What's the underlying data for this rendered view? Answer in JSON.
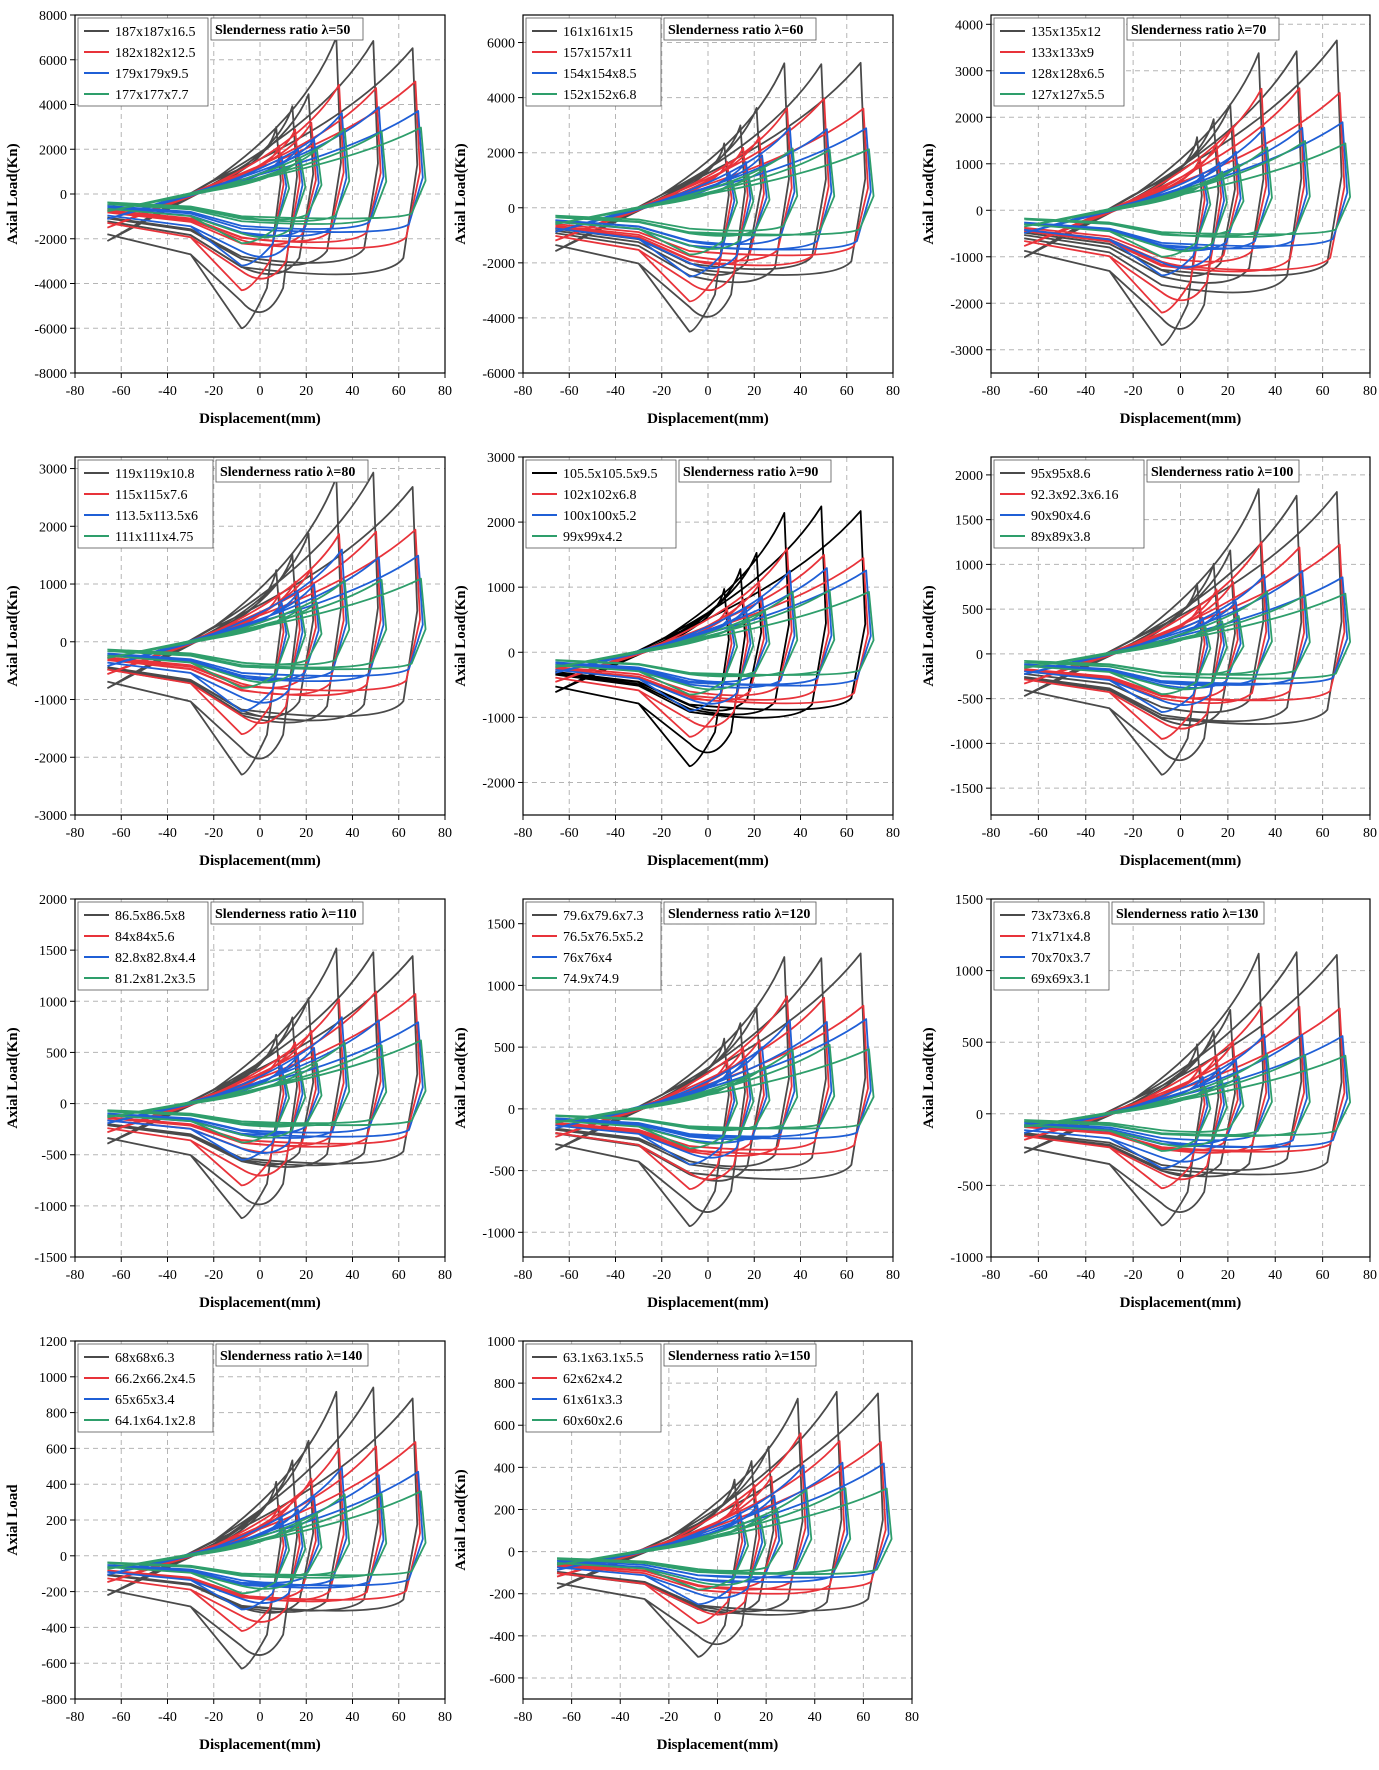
{
  "colors": {
    "black": "#4a4a4a",
    "true_black": "#000000",
    "red": "#e8333a",
    "blue": "#1f5fd6",
    "green": "#2e9e6b",
    "grid": "#b5b5b5"
  },
  "chart_data": [
    {
      "type": "line",
      "title": "Slenderness ratio λ=50",
      "xlabel": "Displacement(mm)",
      "ylabel": "Axial Load(Kn)",
      "xlim": [
        -80,
        80
      ],
      "ylim": [
        -8000,
        8000
      ],
      "xticks": [
        -80,
        -60,
        -40,
        -20,
        0,
        20,
        40,
        60,
        80
      ],
      "yticks": [
        -8000,
        -6000,
        -4000,
        -2000,
        0,
        2000,
        4000,
        6000,
        8000
      ],
      "grid": true,
      "legend": "top-left",
      "series": [
        {
          "name": "187x187x16.5",
          "color": "black",
          "peak_tension": 7200,
          "peak_compression": -6000
        },
        {
          "name": "182x182x12.5",
          "color": "red",
          "peak_tension": 5200,
          "peak_compression": -4300
        },
        {
          "name": "179x179x9.5",
          "color": "blue",
          "peak_tension": 4000,
          "peak_compression": -3200
        },
        {
          "name": "177x177x7.7",
          "color": "green",
          "peak_tension": 3000,
          "peak_compression": -2200
        }
      ]
    },
    {
      "type": "line",
      "title": "Slenderness ratio λ=60",
      "xlabel": "Displacement(mm)",
      "ylabel": "Axial Load(Kn)",
      "xlim": [
        -80,
        80
      ],
      "ylim": [
        -6000,
        7000
      ],
      "xticks": [
        -80,
        -60,
        -40,
        -20,
        0,
        20,
        40,
        60,
        80
      ],
      "yticks": [
        -6000,
        -4000,
        -2000,
        0,
        2000,
        4000,
        6000
      ],
      "grid": true,
      "legend": "top-left",
      "series": [
        {
          "name": "161x161x15",
          "color": "black",
          "peak_tension": 5600,
          "peak_compression": -4500
        },
        {
          "name": "157x157x11",
          "color": "red",
          "peak_tension": 4000,
          "peak_compression": -3400
        },
        {
          "name": "154x154x8.5",
          "color": "blue",
          "peak_tension": 3000,
          "peak_compression": -2500
        },
        {
          "name": "152x152x6.8",
          "color": "green",
          "peak_tension": 2300,
          "peak_compression": -1700
        }
      ]
    },
    {
      "type": "line",
      "title": "Slenderness ratio λ=70",
      "xlabel": "Displacement(mm)",
      "ylabel": "Axial Load(Kn)",
      "xlim": [
        -80,
        80
      ],
      "ylim": [
        -3500,
        4200
      ],
      "xticks": [
        -80,
        -60,
        -40,
        -20,
        0,
        20,
        40,
        60,
        80
      ],
      "yticks": [
        -3000,
        -2000,
        -1000,
        0,
        1000,
        2000,
        3000,
        4000
      ],
      "grid": true,
      "legend": "top-left",
      "series": [
        {
          "name": "135x135x12",
          "color": "black",
          "peak_tension": 3750,
          "peak_compression": -2900
        },
        {
          "name": "133x133x9",
          "color": "red",
          "peak_tension": 2700,
          "peak_compression": -2200
        },
        {
          "name": "128x128x6.5",
          "color": "blue",
          "peak_tension": 1900,
          "peak_compression": -1400
        },
        {
          "name": "127x127x5.5",
          "color": "green",
          "peak_tension": 1500,
          "peak_compression": -1000
        }
      ]
    },
    {
      "type": "line",
      "title": "Slenderness ratio λ=80",
      "xlabel": "Displacement(mm)",
      "ylabel": "Axial Load(Kn)",
      "xlim": [
        -80,
        80
      ],
      "ylim": [
        -3000,
        3200
      ],
      "xticks": [
        -80,
        -60,
        -40,
        -20,
        0,
        20,
        40,
        60,
        80
      ],
      "yticks": [
        -3000,
        -2000,
        -1000,
        0,
        1000,
        2000,
        3000
      ],
      "grid": true,
      "legend": "top-left",
      "series": [
        {
          "name": "119x119x10.8",
          "color": "black",
          "peak_tension": 2950,
          "peak_compression": -2300
        },
        {
          "name": "115x115x7.6",
          "color": "red",
          "peak_tension": 2000,
          "peak_compression": -1600
        },
        {
          "name": "113.5x113.5x6",
          "color": "blue",
          "peak_tension": 1600,
          "peak_compression": -1200
        },
        {
          "name": "111x111x4.75",
          "color": "green",
          "peak_tension": 1100,
          "peak_compression": -800
        }
      ]
    },
    {
      "type": "line",
      "title": "Slenderness ratio λ=90",
      "xlabel": "Displacement(mm)",
      "ylabel": "Axial Load(Kn)",
      "xlim": [
        -80,
        80
      ],
      "ylim": [
        -2500,
        3000
      ],
      "xticks": [
        -80,
        -60,
        -40,
        -20,
        0,
        20,
        40,
        60,
        80
      ],
      "yticks": [
        -2000,
        -1000,
        0,
        1000,
        2000,
        3000
      ],
      "grid": true,
      "legend": "top-left",
      "series": [
        {
          "name": "105.5x105.5x9.5",
          "color": "true_black",
          "peak_tension": 2300,
          "peak_compression": -1750
        },
        {
          "name": "102x102x6.8",
          "color": "red",
          "peak_tension": 1600,
          "peak_compression": -1300
        },
        {
          "name": "100x100x5.2",
          "color": "blue",
          "peak_tension": 1300,
          "peak_compression": -900
        },
        {
          "name": "99x99x4.2",
          "color": "green",
          "peak_tension": 1000,
          "peak_compression": -650
        }
      ]
    },
    {
      "type": "line",
      "title": "Slenderness ratio λ=100",
      "xlabel": "Displacement(mm)",
      "ylabel": "Axial Load(Kn)",
      "xlim": [
        -80,
        80
      ],
      "ylim": [
        -1800,
        2200
      ],
      "xticks": [
        -80,
        -60,
        -40,
        -20,
        0,
        20,
        40,
        60,
        80
      ],
      "yticks": [
        -1500,
        -1000,
        -500,
        0,
        500,
        1000,
        1500,
        2000
      ],
      "grid": true,
      "legend": "top-left",
      "series": [
        {
          "name": "95x95x8.6",
          "color": "black",
          "peak_tension": 1850,
          "peak_compression": -1350
        },
        {
          "name": "92.3x92.3x6.16",
          "color": "red",
          "peak_tension": 1300,
          "peak_compression": -950
        },
        {
          "name": "90x90x4.6",
          "color": "blue",
          "peak_tension": 950,
          "peak_compression": -650
        },
        {
          "name": "89x89x3.8",
          "color": "green",
          "peak_tension": 700,
          "peak_compression": -450
        }
      ]
    },
    {
      "type": "line",
      "title": "Slenderness ratio λ=110",
      "xlabel": "Displacement(mm)",
      "ylabel": "Axial Load(Kn)",
      "xlim": [
        -80,
        80
      ],
      "ylim": [
        -1500,
        2000
      ],
      "xticks": [
        -80,
        -60,
        -40,
        -20,
        0,
        20,
        40,
        60,
        80
      ],
      "yticks": [
        -1500,
        -1000,
        -500,
        0,
        500,
        1000,
        1500,
        2000
      ],
      "grid": true,
      "legend": "top-left",
      "series": [
        {
          "name": "86.5x86.5x8",
          "color": "black",
          "peak_tension": 1580,
          "peak_compression": -1120
        },
        {
          "name": "84x84x5.6",
          "color": "red",
          "peak_tension": 1100,
          "peak_compression": -800
        },
        {
          "name": "82.8x82.8x4.4",
          "color": "blue",
          "peak_tension": 850,
          "peak_compression": -550
        },
        {
          "name": "81.2x81.2x3.5",
          "color": "green",
          "peak_tension": 620,
          "peak_compression": -380
        }
      ]
    },
    {
      "type": "line",
      "title": "Slenderness ratio λ=120",
      "xlabel": "Displacement(mm)",
      "ylabel": "Axial Load(Kn)",
      "xlim": [
        -80,
        80
      ],
      "ylim": [
        -1200,
        1700
      ],
      "xticks": [
        -80,
        -60,
        -40,
        -20,
        0,
        20,
        40,
        60,
        80
      ],
      "yticks": [
        -1000,
        -500,
        0,
        500,
        1000,
        1500
      ],
      "grid": true,
      "legend": "top-left",
      "series": [
        {
          "name": "79.6x79.6x7.3",
          "color": "black",
          "peak_tension": 1330,
          "peak_compression": -950
        },
        {
          "name": "76.5x76.5x5.2",
          "color": "red",
          "peak_tension": 920,
          "peak_compression": -650
        },
        {
          "name": "76x76x4",
          "color": "blue",
          "peak_tension": 750,
          "peak_compression": -450
        },
        {
          "name": "74.9x74.9",
          "color": "green",
          "peak_tension": 520,
          "peak_compression": -320
        }
      ]
    },
    {
      "type": "line",
      "title": "Slenderness ratio λ=130",
      "xlabel": "Displacement(mm)",
      "ylabel": "Axial Load(Kn)",
      "xlim": [
        -80,
        80
      ],
      "ylim": [
        -1000,
        1500
      ],
      "xticks": [
        -80,
        -60,
        -40,
        -20,
        0,
        20,
        40,
        60,
        80
      ],
      "yticks": [
        -1000,
        -500,
        0,
        500,
        1000,
        1500
      ],
      "grid": true,
      "legend": "top-left",
      "series": [
        {
          "name": "73x73x6.8",
          "color": "black",
          "peak_tension": 1130,
          "peak_compression": -780
        },
        {
          "name": "71x71x4.8",
          "color": "red",
          "peak_tension": 780,
          "peak_compression": -520
        },
        {
          "name": "70x70x3.7",
          "color": "blue",
          "peak_tension": 600,
          "peak_compression": -380
        },
        {
          "name": "69x69x3.1",
          "color": "green",
          "peak_tension": 420,
          "peak_compression": -260
        }
      ]
    },
    {
      "type": "line",
      "title": "Slenderness ratio λ=140",
      "xlabel": "Displacement(mm)",
      "ylabel": "Axial Load",
      "xlim": [
        -80,
        80
      ],
      "ylim": [
        -800,
        1200
      ],
      "xticks": [
        -80,
        -60,
        -40,
        -20,
        0,
        20,
        40,
        60,
        80
      ],
      "yticks": [
        -800,
        -600,
        -400,
        -200,
        0,
        200,
        400,
        600,
        800,
        1000,
        1200
      ],
      "grid": true,
      "legend": "top-left",
      "series": [
        {
          "name": "68x68x6.3",
          "color": "black",
          "peak_tension": 960,
          "peak_compression": -630
        },
        {
          "name": "66.2x66.2x4.5",
          "color": "red",
          "peak_tension": 650,
          "peak_compression": -420
        },
        {
          "name": "65x65x3.4",
          "color": "blue",
          "peak_tension": 500,
          "peak_compression": -300
        },
        {
          "name": "64.1x64.1x2.8",
          "color": "green",
          "peak_tension": 360,
          "peak_compression": -210
        }
      ]
    },
    {
      "type": "line",
      "title": "Slenderness ratio λ=150",
      "xlabel": "Displacement(mm)",
      "ylabel": "Axial Load(Kn)",
      "xlim": [
        -80,
        80
      ],
      "ylim": [
        -700,
        1000
      ],
      "xticks": [
        -80,
        -60,
        -40,
        -20,
        0,
        20,
        40,
        60,
        80
      ],
      "yticks": [
        -600,
        -400,
        -200,
        0,
        200,
        400,
        600,
        800,
        1000
      ],
      "grid": true,
      "legend": "top-left",
      "series": [
        {
          "name": "63.1x63.1x5.5",
          "color": "black",
          "peak_tension": 790,
          "peak_compression": -500
        },
        {
          "name": "62x62x4.2",
          "color": "red",
          "peak_tension": 570,
          "peak_compression": -340
        },
        {
          "name": "61x61x3.3",
          "color": "blue",
          "peak_tension": 430,
          "peak_compression": -250
        },
        {
          "name": "60x60x2.6",
          "color": "green",
          "peak_tension": 320,
          "peak_compression": -180
        }
      ]
    }
  ]
}
